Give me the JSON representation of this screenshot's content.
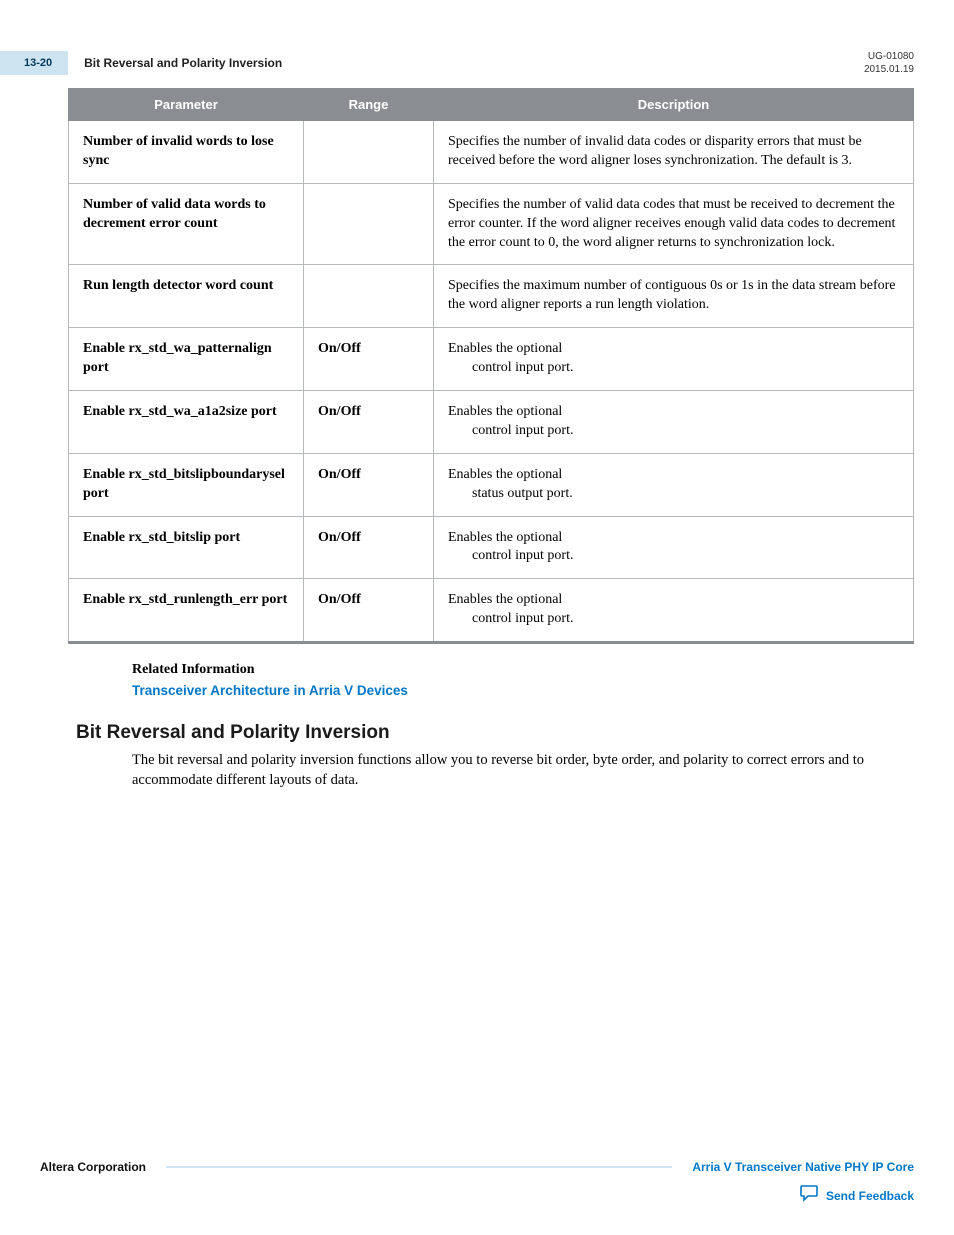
{
  "header": {
    "page_num": "13-20",
    "title": "Bit Reversal and Polarity Inversion",
    "doc_id": "UG-01080",
    "date": "2015.01.19"
  },
  "table": {
    "headers": {
      "parameter": "Parameter",
      "range": "Range",
      "description": "Description"
    },
    "col_widths": {
      "parameter": 235,
      "range": 130
    },
    "header_bg": "#8a8e92",
    "header_fg": "#ffffff",
    "border_color": "#b6b9bc",
    "rows": [
      {
        "parameter": "Number of invalid words to lose sync",
        "range": "",
        "description": "Specifies the number of invalid data codes or disparity errors that must be received before the word aligner loses synchronization. The default is 3."
      },
      {
        "parameter": "Number of valid data words to decrement error count",
        "range": "",
        "description": "Specifies the number of valid data codes that must be received to decrement the error counter. If the word aligner receives enough valid data codes to decrement the error count to 0, the word aligner returns to synchronization lock."
      },
      {
        "parameter": "Run length detector word count",
        "range": "",
        "description": "Specifies the maximum number of contiguous 0s or 1s in the data stream before the word aligner reports a run length violation."
      },
      {
        "parameter": "Enable rx_std_wa_patternalign port",
        "range": "On/Off",
        "description_l1": "Enables the optional",
        "description_l2": "control input port."
      },
      {
        "parameter": "Enable rx_std_wa_a1a2size port",
        "range": "On/Off",
        "description_l1": "Enables the optional",
        "description_l2": "control input port."
      },
      {
        "parameter": "Enable rx_std_bitslipboundarysel port",
        "range": "On/Off",
        "description_l1": "Enables the optional",
        "description_l2": "status output port."
      },
      {
        "parameter": "Enable rx_std_bitslip port",
        "range": "On/Off",
        "description_l1": "Enables the optional",
        "description_l2": "control input port."
      },
      {
        "parameter": "Enable rx_std_runlength_err port",
        "range": "On/Off",
        "description_l1": "Enables the optional",
        "description_l2": "control input port."
      }
    ]
  },
  "related": {
    "heading": "Related Information",
    "link_text": "Transceiver Architecture in Arria V Devices"
  },
  "section": {
    "heading": "Bit Reversal and Polarity Inversion",
    "body": "The bit reversal and polarity inversion functions allow you to reverse bit order, byte order, and polarity to correct errors and to accommodate different layouts of data."
  },
  "footer": {
    "left": "Altera Corporation",
    "right": "Arria V Transceiver Native PHY IP Core",
    "feedback": "Send Feedback"
  },
  "colors": {
    "tab_bg": "#cde4f0",
    "tab_fg": "#003a5d",
    "link": "#0077c8"
  }
}
